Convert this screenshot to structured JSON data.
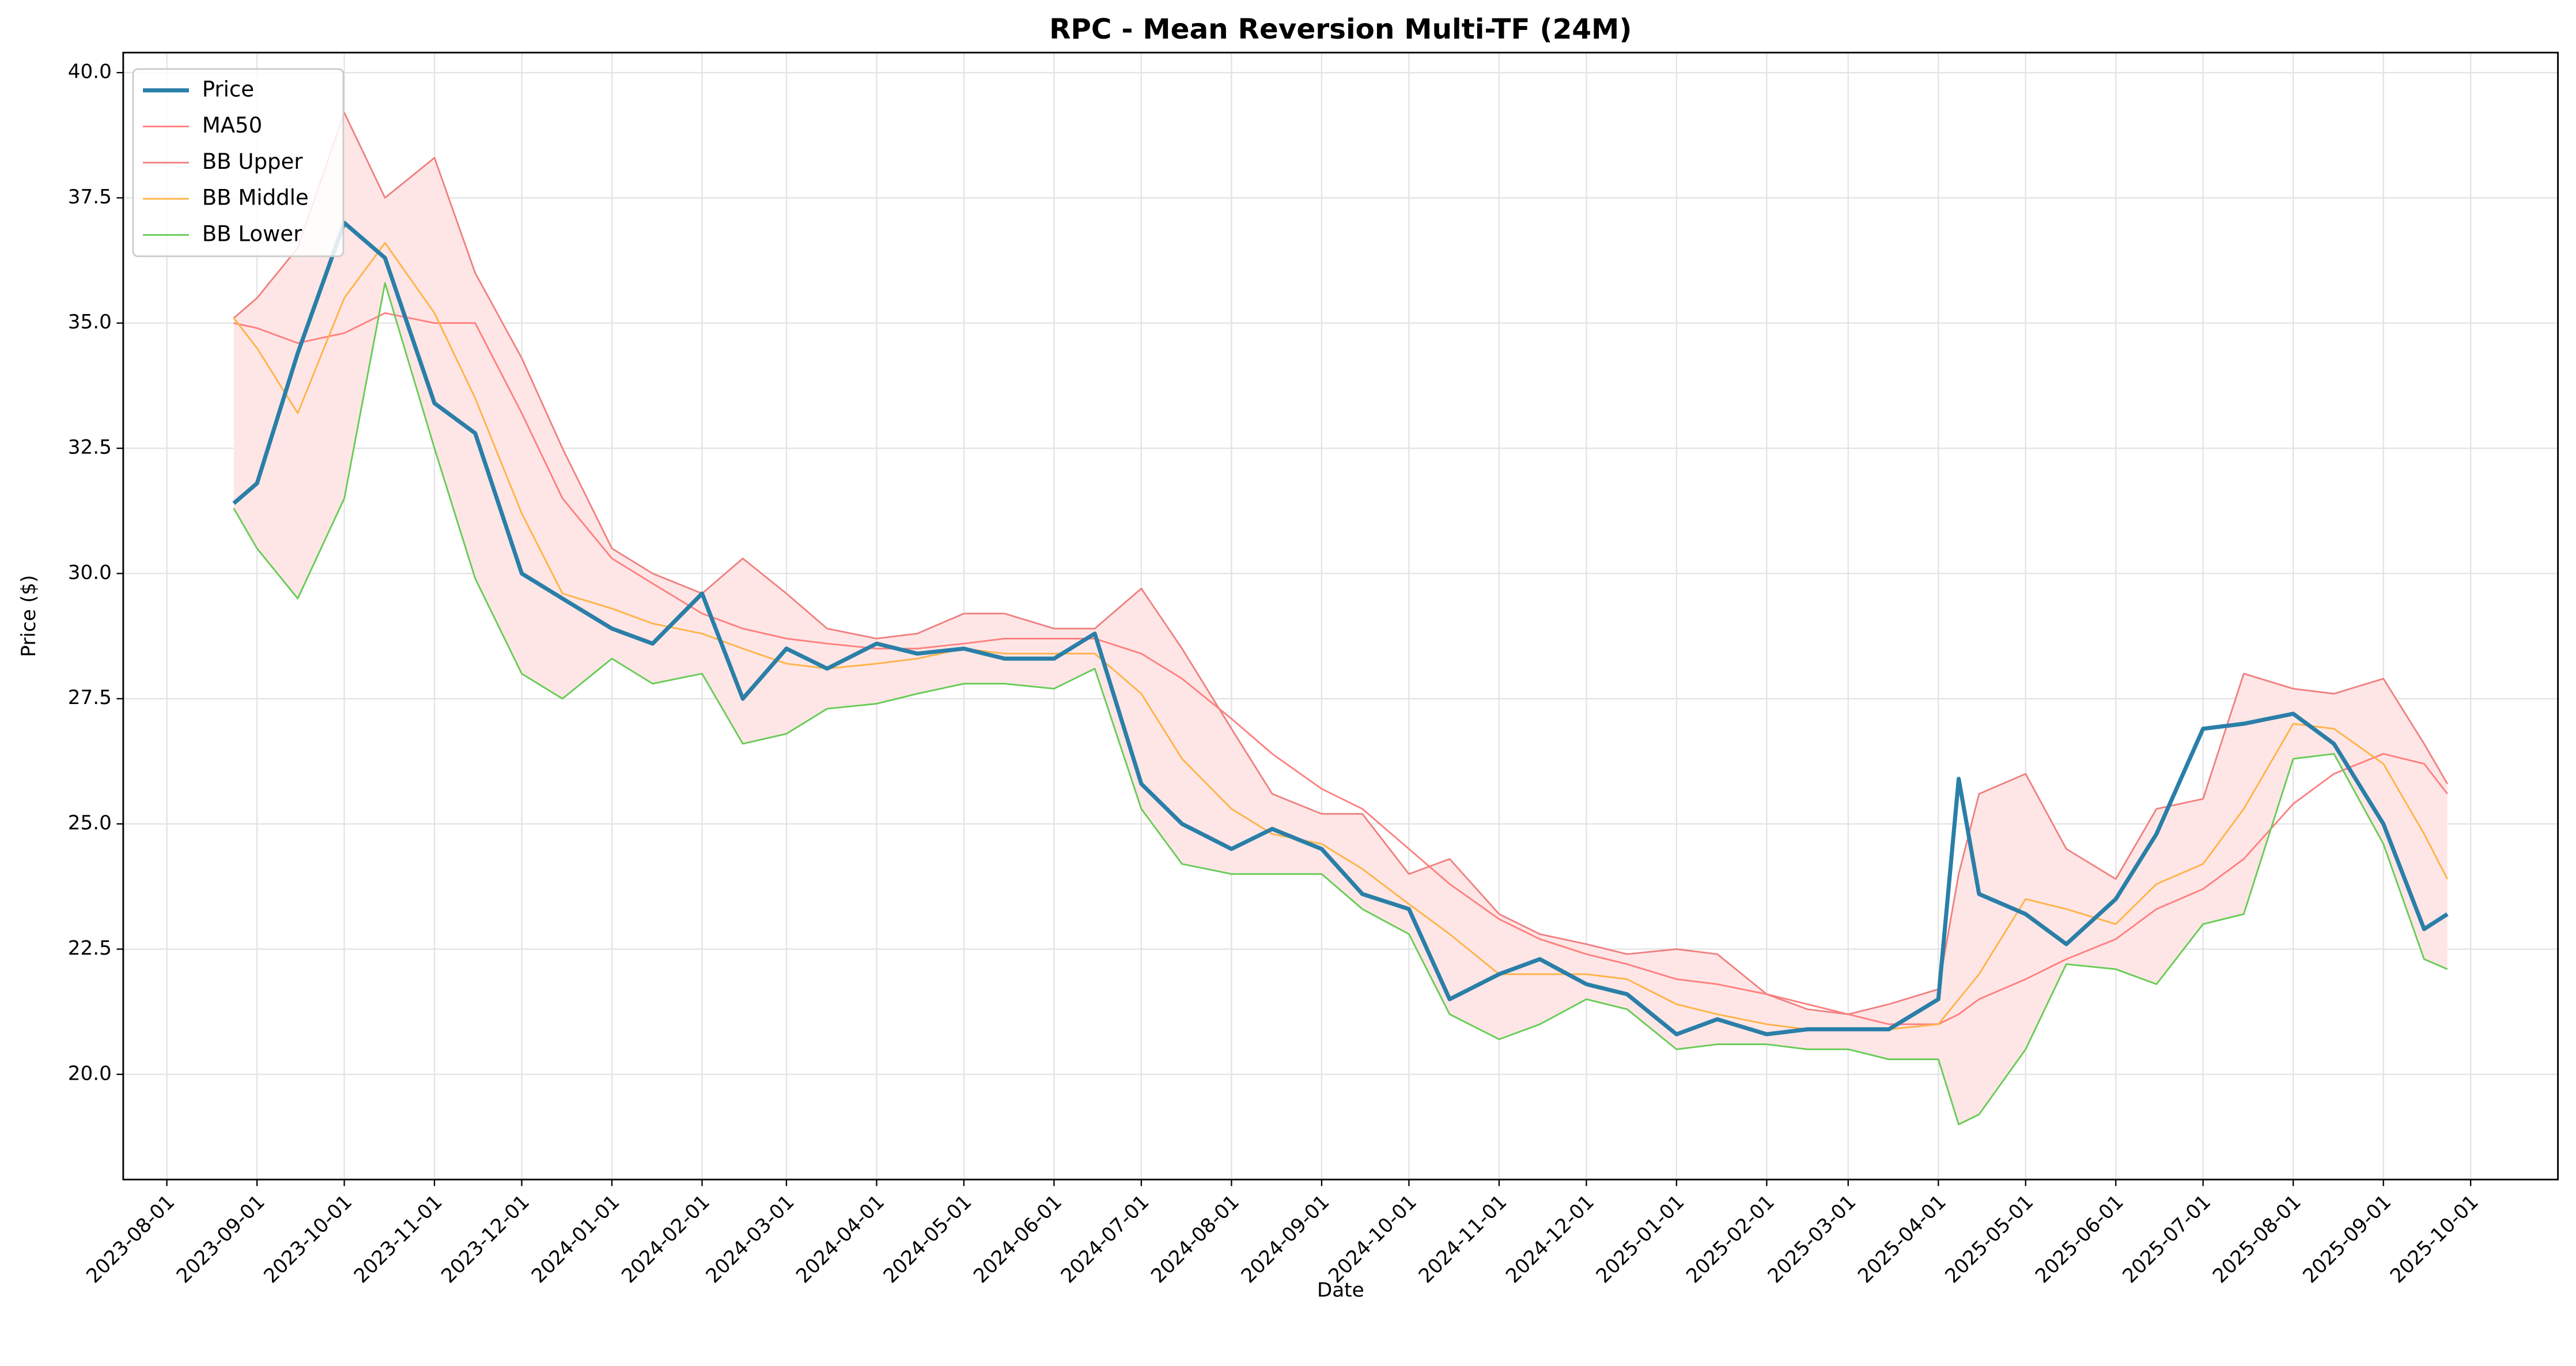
{
  "chart_data": {
    "type": "line",
    "title": "RPC - Mean Reversion Multi-TF (24M)",
    "x_label": "Date",
    "y_label": "Price ($)",
    "x": [
      "2023-08-24",
      "2023-09-01",
      "2023-09-15",
      "2023-10-01",
      "2023-10-15",
      "2023-11-01",
      "2023-11-15",
      "2023-12-01",
      "2023-12-15",
      "2024-01-01",
      "2024-01-15",
      "2024-02-01",
      "2024-02-15",
      "2024-03-01",
      "2024-03-15",
      "2024-04-01",
      "2024-04-15",
      "2024-05-01",
      "2024-05-15",
      "2024-06-01",
      "2024-06-15",
      "2024-07-01",
      "2024-07-15",
      "2024-08-01",
      "2024-08-15",
      "2024-09-01",
      "2024-09-15",
      "2024-10-01",
      "2024-10-15",
      "2024-11-01",
      "2024-11-15",
      "2024-12-01",
      "2024-12-15",
      "2025-01-01",
      "2025-01-15",
      "2025-02-01",
      "2025-02-15",
      "2025-03-01",
      "2025-03-15",
      "2025-04-01",
      "2025-04-08",
      "2025-04-15",
      "2025-05-01",
      "2025-05-15",
      "2025-06-01",
      "2025-06-15",
      "2025-07-01",
      "2025-07-15",
      "2025-08-01",
      "2025-08-15",
      "2025-09-01",
      "2025-09-15",
      "2025-09-23"
    ],
    "series": [
      {
        "name": "Price",
        "color": "#2a7fa8",
        "width": 2.5,
        "values": [
          31.4,
          31.8,
          34.4,
          37.0,
          36.3,
          33.4,
          32.8,
          30.0,
          29.5,
          28.9,
          28.6,
          29.6,
          27.5,
          28.5,
          28.1,
          28.6,
          28.4,
          28.5,
          28.3,
          28.3,
          28.8,
          25.8,
          25.0,
          24.5,
          24.9,
          24.5,
          23.6,
          23.3,
          21.5,
          22.0,
          22.3,
          21.8,
          21.6,
          20.8,
          21.1,
          20.8,
          20.9,
          20.9,
          20.9,
          21.5,
          25.9,
          23.6,
          23.2,
          22.6,
          23.5,
          24.8,
          26.9,
          27.0,
          27.2,
          26.6,
          25.0,
          22.9,
          23.2
        ]
      },
      {
        "name": "MA50",
        "color": "#ff7f7f",
        "width": 1,
        "values": [
          35.0,
          34.9,
          34.6,
          34.8,
          35.2,
          35.0,
          35.0,
          33.2,
          31.5,
          30.3,
          29.8,
          29.2,
          28.9,
          28.7,
          28.6,
          28.5,
          28.5,
          28.6,
          28.7,
          28.7,
          28.7,
          28.4,
          27.9,
          27.1,
          26.4,
          25.7,
          25.3,
          24.5,
          23.8,
          23.1,
          22.7,
          22.4,
          22.2,
          21.9,
          21.8,
          21.6,
          21.4,
          21.2,
          21.0,
          21.0,
          21.2,
          21.5,
          21.9,
          22.3,
          22.7,
          23.3,
          23.7,
          24.3,
          25.4,
          26.0,
          26.4,
          26.2,
          25.6
        ]
      },
      {
        "name": "BB Upper",
        "color": "#f08080",
        "width": 1,
        "values": [
          35.1,
          35.5,
          36.5,
          39.2,
          37.5,
          38.3,
          36.0,
          34.3,
          32.5,
          30.5,
          30.0,
          29.6,
          30.3,
          29.6,
          28.9,
          28.7,
          28.8,
          29.2,
          29.2,
          28.9,
          28.9,
          29.7,
          28.5,
          26.9,
          25.6,
          25.2,
          25.2,
          24.0,
          24.3,
          23.2,
          22.8,
          22.6,
          22.4,
          22.5,
          22.4,
          21.6,
          21.3,
          21.2,
          21.4,
          21.7,
          24.0,
          25.6,
          26.0,
          24.5,
          23.9,
          25.3,
          25.5,
          28.0,
          27.7,
          27.6,
          27.9,
          26.6,
          25.8
        ]
      },
      {
        "name": "BB Middle",
        "color": "#ffb347",
        "width": 1,
        "values": [
          35.1,
          34.5,
          33.2,
          35.5,
          36.6,
          35.2,
          33.5,
          31.2,
          29.6,
          29.3,
          29.0,
          28.8,
          28.5,
          28.2,
          28.1,
          28.2,
          28.3,
          28.5,
          28.4,
          28.4,
          28.4,
          27.6,
          26.3,
          25.3,
          24.8,
          24.6,
          24.1,
          23.4,
          22.8,
          22.0,
          22.0,
          22.0,
          21.9,
          21.4,
          21.2,
          21.0,
          20.9,
          20.9,
          20.9,
          21.0,
          21.5,
          22.0,
          23.5,
          23.3,
          23.0,
          23.8,
          24.2,
          25.3,
          27.0,
          26.9,
          26.2,
          24.8,
          23.9
        ]
      },
      {
        "name": "BB Lower",
        "color": "#66cc55",
        "width": 1,
        "values": [
          31.3,
          30.5,
          29.5,
          31.5,
          35.8,
          32.5,
          29.9,
          28.0,
          27.5,
          28.3,
          27.8,
          28.0,
          26.6,
          26.8,
          27.3,
          27.4,
          27.6,
          27.8,
          27.8,
          27.7,
          28.1,
          25.3,
          24.2,
          24.0,
          24.0,
          24.0,
          23.3,
          22.8,
          21.2,
          20.7,
          21.0,
          21.5,
          21.3,
          20.5,
          20.6,
          20.6,
          20.5,
          20.5,
          20.3,
          20.3,
          19.0,
          19.2,
          20.5,
          22.2,
          22.1,
          21.8,
          23.0,
          23.2,
          26.3,
          26.4,
          24.6,
          22.3,
          22.1
        ]
      }
    ],
    "band_fill": "#ffe6e6",
    "xlim": [
      "2023-07-17",
      "2025-10-31"
    ],
    "xticks": [
      "2023-08-01",
      "2023-09-01",
      "2023-10-01",
      "2023-11-01",
      "2023-12-01",
      "2024-01-01",
      "2024-02-01",
      "2024-03-01",
      "2024-04-01",
      "2024-05-01",
      "2024-06-01",
      "2024-07-01",
      "2024-08-01",
      "2024-09-01",
      "2024-10-01",
      "2024-11-01",
      "2024-12-01",
      "2025-01-01",
      "2025-02-01",
      "2025-03-01",
      "2025-04-01",
      "2025-05-01",
      "2025-06-01",
      "2025-07-01",
      "2025-08-01",
      "2025-09-01",
      "2025-10-01"
    ],
    "ylim": [
      17.9,
      40.4
    ],
    "yticks": [
      {
        "value": 20,
        "label": "20.0"
      },
      22.5,
      {
        "value": 25,
        "label": "25.0"
      },
      27.5,
      {
        "value": 30,
        "label": "30.0"
      },
      32.5,
      {
        "value": 35,
        "label": "35.0"
      },
      37.5,
      {
        "value": 40,
        "label": "40.0"
      }
    ],
    "grid": true,
    "legend": "upper left"
  }
}
